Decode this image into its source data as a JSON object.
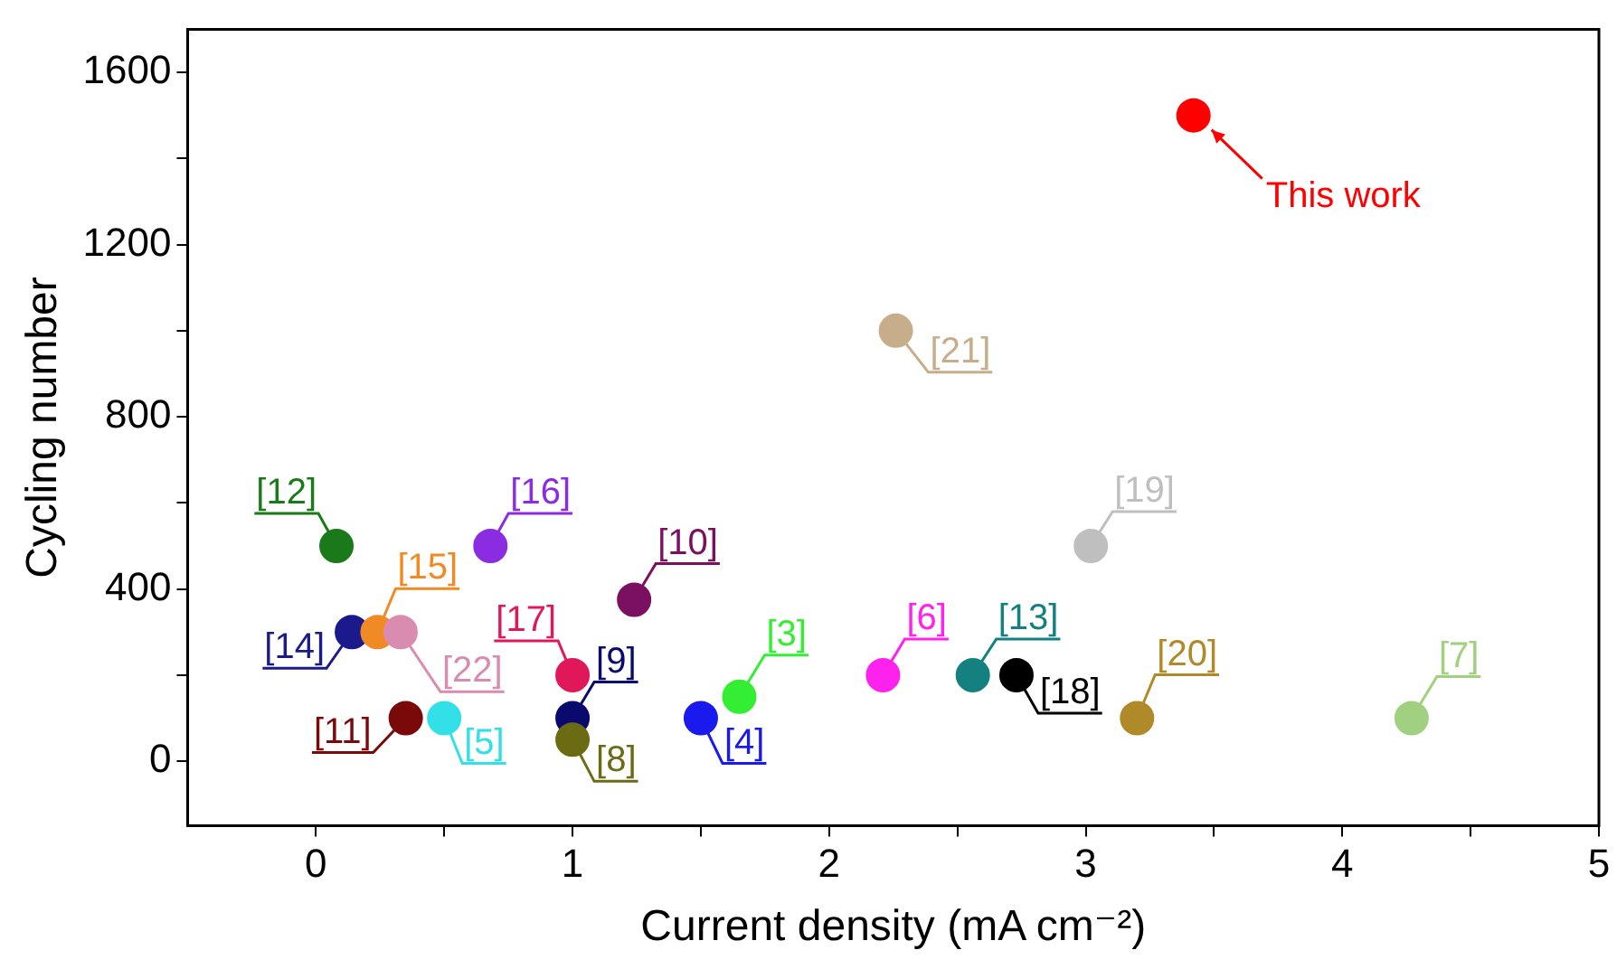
{
  "chart_data": {
    "type": "scatter",
    "xlabel": "Current density (mA cm⁻²)",
    "ylabel": "Cycling number",
    "xlim": [
      -0.5,
      5
    ],
    "xticks": [
      0,
      {
        "value": 0.5,
        "label": null
      },
      1,
      {
        "value": 1.5,
        "label": null
      },
      2,
      {
        "value": 2.5,
        "label": null
      },
      3,
      {
        "value": 3.5,
        "label": null
      },
      4,
      {
        "value": 4.5,
        "label": null
      },
      5
    ],
    "ylim": [
      -150,
      1700
    ],
    "yticks": [
      0,
      {
        "value": 200,
        "label": null
      },
      400,
      {
        "value": 600,
        "label": null
      },
      800,
      {
        "value": 1000,
        "label": null
      },
      1200,
      {
        "value": 1400,
        "label": null
      },
      1600
    ],
    "grid": false,
    "legend": false,
    "marker": "circle",
    "x": [
      3.42,
      2.26,
      0.08,
      0.68,
      1.24,
      3.02,
      0.14,
      0.24,
      0.33,
      1.0,
      1.0,
      1.0,
      0.35,
      0.5,
      1.5,
      1.65,
      2.21,
      2.56,
      2.73,
      3.2,
      4.27
    ],
    "values": [
      1500,
      1000,
      500,
      500,
      375,
      500,
      300,
      300,
      300,
      200,
      100,
      50,
      100,
      100,
      100,
      150,
      200,
      200,
      200,
      100,
      100
    ],
    "colors": [
      "#ff0000",
      "#c8ad8a",
      "#1a7a1a",
      "#8b2be2",
      "#7b1060",
      "#bfbfbf",
      "#1a1a8c",
      "#f08a24",
      "#d98cb0",
      "#e0185a",
      "#0a0a6e",
      "#6b6b14",
      "#7a0a0a",
      "#33e0e8",
      "#1a1aee",
      "#33ee33",
      "#ff22ee",
      "#158080",
      "#000000",
      "#b08a28",
      "#a0d080"
    ],
    "annotations": [
      {
        "text": "This work",
        "x": 3.42,
        "y": 1500
      },
      {
        "text": "[21]",
        "x": 2.26,
        "y": 1000
      },
      {
        "text": "[12]",
        "x": 0.08,
        "y": 500
      },
      {
        "text": "[16]",
        "x": 0.68,
        "y": 500
      },
      {
        "text": "[10]",
        "x": 1.24,
        "y": 375
      },
      {
        "text": "[19]",
        "x": 3.02,
        "y": 500
      },
      {
        "text": "[14]",
        "x": 0.14,
        "y": 300
      },
      {
        "text": "[15]",
        "x": 0.24,
        "y": 300
      },
      {
        "text": "[22]",
        "x": 0.33,
        "y": 300
      },
      {
        "text": "[17]",
        "x": 1.0,
        "y": 200
      },
      {
        "text": "[9]",
        "x": 1.0,
        "y": 100
      },
      {
        "text": "[8]",
        "x": 1.0,
        "y": 50
      },
      {
        "text": "[11]",
        "x": 0.35,
        "y": 100
      },
      {
        "text": "[5]",
        "x": 0.5,
        "y": 100
      },
      {
        "text": "[4]",
        "x": 1.5,
        "y": 100
      },
      {
        "text": "[3]",
        "x": 1.65,
        "y": 150
      },
      {
        "text": "[6]",
        "x": 2.21,
        "y": 200
      },
      {
        "text": "[13]",
        "x": 2.56,
        "y": 200
      },
      {
        "text": "[18]",
        "x": 2.73,
        "y": 200
      },
      {
        "text": "[20]",
        "x": 3.2,
        "y": 100
      },
      {
        "text": "[7]",
        "x": 4.27,
        "y": 100
      }
    ]
  }
}
